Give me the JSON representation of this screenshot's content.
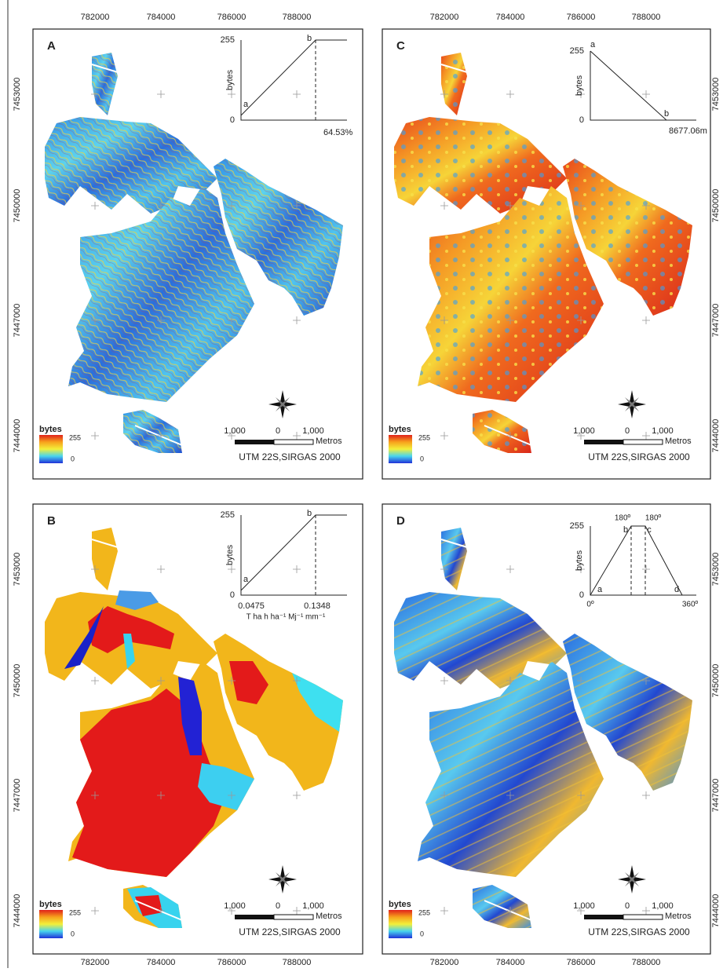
{
  "easting_labels": [
    "782000",
    "784000",
    "786000",
    "788000"
  ],
  "northing_labels": [
    "7453000",
    "7450000",
    "7447000",
    "7444000"
  ],
  "legend": {
    "title": "bytes",
    "max": "255",
    "min": "0"
  },
  "scale_bar": {
    "labels": [
      "1,000",
      "0",
      "1,000"
    ],
    "unit": "Metros"
  },
  "crs": "UTM 22S,SIRGAS 2000",
  "panels": [
    {
      "letter": "A",
      "inset": {
        "y_max": "255",
        "y_min": "0",
        "y_label": "bytes",
        "points": [
          "a",
          "b"
        ],
        "x_labels": [
          "64.53%"
        ]
      }
    },
    {
      "letter": "C",
      "inset": {
        "y_max": "255",
        "y_min": "0",
        "y_label": "bytes",
        "points": [
          "a",
          "b"
        ],
        "x_labels": [
          "8677.06m"
        ]
      }
    },
    {
      "letter": "B",
      "inset": {
        "y_max": "255",
        "y_min": "0",
        "y_label": "bytes",
        "points": [
          "a",
          "b"
        ],
        "x_labels": [
          "0.0475",
          "0.1348"
        ],
        "x_unit": "T ha h ha⁻¹ Mj⁻¹ mm⁻¹"
      }
    },
    {
      "letter": "D",
      "inset": {
        "y_max": "255",
        "y_min": "0",
        "y_label": "bytes",
        "points": [
          "a",
          "b",
          "c",
          "d"
        ],
        "x_labels": [
          "0º",
          "360º"
        ],
        "peak_labels": [
          "180º",
          "180º"
        ]
      }
    }
  ]
}
